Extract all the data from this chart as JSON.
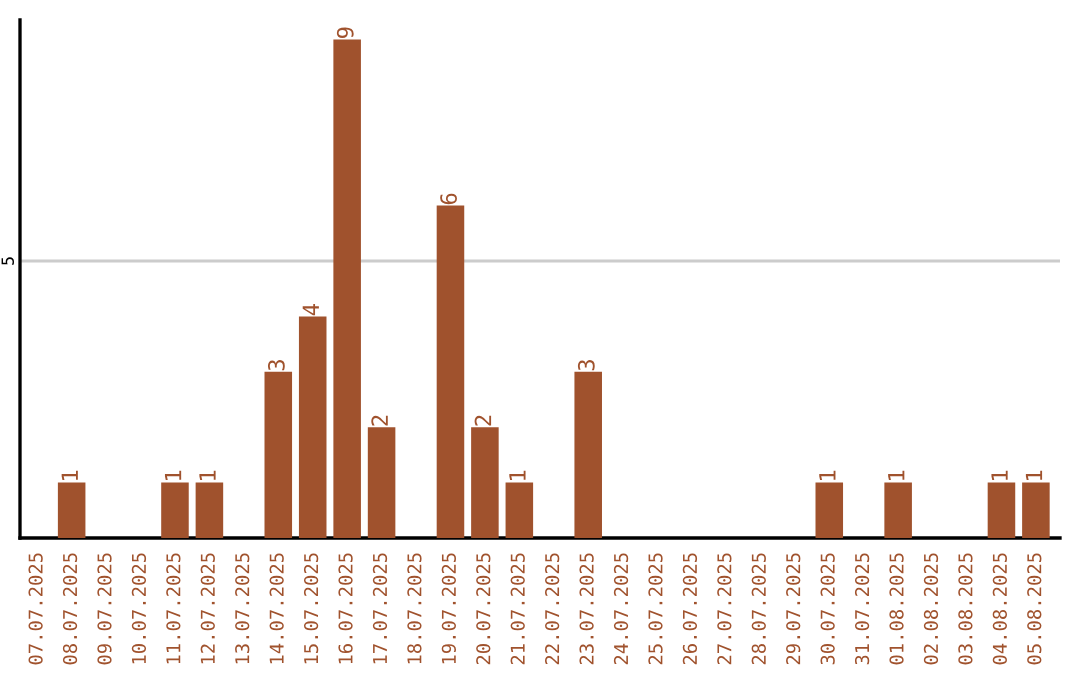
{
  "chart_data": {
    "type": "bar",
    "categories": [
      "07.07.2025",
      "08.07.2025",
      "09.07.2025",
      "10.07.2025",
      "11.07.2025",
      "12.07.2025",
      "13.07.2025",
      "14.07.2025",
      "15.07.2025",
      "16.07.2025",
      "17.07.2025",
      "18.07.2025",
      "19.07.2025",
      "20.07.2025",
      "21.07.2025",
      "22.07.2025",
      "23.07.2025",
      "24.07.2025",
      "25.07.2025",
      "26.07.2025",
      "27.07.2025",
      "28.07.2025",
      "29.07.2025",
      "30.07.2025",
      "31.07.2025",
      "01.08.2025",
      "02.08.2025",
      "03.08.2025",
      "04.08.2025",
      "05.08.2025"
    ],
    "values": [
      0,
      1,
      0,
      0,
      1,
      1,
      0,
      3,
      4,
      9,
      2,
      0,
      6,
      2,
      1,
      0,
      3,
      0,
      0,
      0,
      0,
      0,
      0,
      1,
      0,
      1,
      0,
      0,
      1,
      1
    ],
    "value_labels": [
      null,
      "1",
      null,
      null,
      "1",
      "1",
      null,
      "3",
      "4",
      "9",
      "2",
      null,
      "6",
      "2",
      "1",
      null,
      "3",
      null,
      null,
      null,
      null,
      null,
      null,
      "1",
      null,
      "1",
      null,
      null,
      "1",
      "1"
    ],
    "color": "#a0522d",
    "ylim": [
      0,
      9.35
    ],
    "yticks": [
      5
    ],
    "grid": "y"
  }
}
